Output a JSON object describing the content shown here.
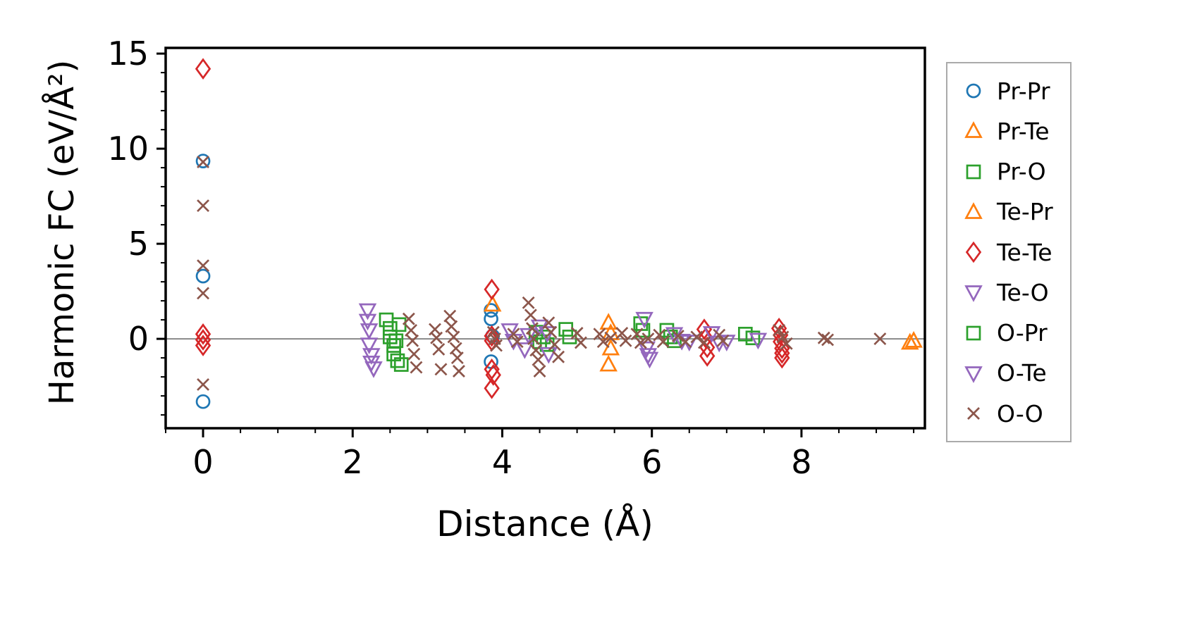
{
  "chart_data": {
    "type": "scatter",
    "title": "",
    "xlabel": "Distance (Å)",
    "ylabel": "Harmonic FC (eV/Å²)",
    "xlim": [
      -0.5,
      9.65
    ],
    "ylim": [
      -4.7,
      15.3
    ],
    "xticks": [
      "0",
      "2",
      "4",
      "6",
      "8"
    ],
    "xtick_values": [
      0,
      2,
      4,
      6,
      8
    ],
    "yticks": [
      "0",
      "5",
      "10",
      "15"
    ],
    "ytick_values": [
      0,
      5,
      10,
      15
    ],
    "grid": false,
    "zero_line": {
      "y": 0,
      "color": "#888888"
    },
    "legend_position": "right-outside",
    "frame_color": "#000000",
    "series": [
      {
        "name": "Pr-Pr",
        "marker": "circle",
        "color": "#1f77b4",
        "points": [
          [
            0,
            9.35
          ],
          [
            0,
            3.3
          ],
          [
            0,
            -3.3
          ],
          [
            3.85,
            1.5
          ],
          [
            3.85,
            1.05
          ],
          [
            3.87,
            0.15
          ],
          [
            3.85,
            -1.2
          ]
        ]
      },
      {
        "name": "Pr-Te",
        "marker": "triangle-up",
        "color": "#ff7f0e",
        "points": [
          [
            5.42,
            0.85
          ],
          [
            5.45,
            0.3
          ],
          [
            5.45,
            -0.5
          ],
          [
            5.42,
            -1.35
          ]
        ]
      },
      {
        "name": "Pr-O",
        "marker": "square",
        "color": "#2ca02c",
        "points": [
          [
            2.45,
            1.0
          ],
          [
            2.5,
            0.55
          ],
          [
            2.5,
            0.1
          ],
          [
            2.55,
            -0.35
          ],
          [
            2.55,
            -0.8
          ],
          [
            2.6,
            -1.15
          ],
          [
            2.65,
            -1.35
          ],
          [
            2.62,
            0.75
          ],
          [
            2.58,
            -0.1
          ]
        ]
      },
      {
        "name": "Te-Pr",
        "marker": "triangle-up",
        "color": "#ff7f0e",
        "points": [
          [
            3.87,
            1.8
          ],
          [
            9.45,
            -0.2
          ],
          [
            9.5,
            -0.1
          ]
        ]
      },
      {
        "name": "Te-Te",
        "marker": "diamond",
        "color": "#d62728",
        "points": [
          [
            0,
            14.2
          ],
          [
            0,
            0.25
          ],
          [
            0,
            -0.05
          ],
          [
            0,
            -0.35
          ],
          [
            3.86,
            2.6
          ],
          [
            3.86,
            0.15
          ],
          [
            3.86,
            -0.1
          ],
          [
            3.86,
            -1.6
          ],
          [
            3.88,
            -1.9
          ],
          [
            3.86,
            -2.6
          ],
          [
            6.7,
            0.5
          ],
          [
            6.72,
            0.05
          ],
          [
            6.74,
            -0.45
          ],
          [
            6.74,
            -0.9
          ],
          [
            7.7,
            0.55
          ],
          [
            7.72,
            0.2
          ],
          [
            7.72,
            -0.15
          ],
          [
            7.74,
            -0.5
          ],
          [
            7.74,
            -0.75
          ],
          [
            7.74,
            -1.0
          ]
        ]
      },
      {
        "name": "Te-O",
        "marker": "triangle-down",
        "color": "#9467bd",
        "points": [
          [
            2.2,
            1.5
          ],
          [
            2.2,
            0.95
          ],
          [
            2.22,
            0.45
          ],
          [
            2.22,
            -0.3
          ],
          [
            2.25,
            -0.85
          ],
          [
            2.25,
            -1.25
          ],
          [
            2.28,
            -1.55
          ]
        ]
      },
      {
        "name": "O-Pr",
        "marker": "square",
        "color": "#2ca02c",
        "points": [
          [
            4.45,
            0.35
          ],
          [
            4.5,
            -0.15
          ],
          [
            4.55,
            0.1
          ],
          [
            4.6,
            -0.3
          ],
          [
            4.85,
            0.5
          ],
          [
            4.9,
            0.1
          ],
          [
            5.85,
            0.8
          ],
          [
            5.88,
            0.45
          ],
          [
            6.2,
            0.45
          ],
          [
            6.25,
            0.1
          ],
          [
            6.3,
            -0.1
          ],
          [
            7.25,
            0.25
          ],
          [
            7.35,
            0.05
          ]
        ]
      },
      {
        "name": "O-Te",
        "marker": "triangle-down",
        "color": "#9467bd",
        "points": [
          [
            4.1,
            0.45
          ],
          [
            4.15,
            -0.1
          ],
          [
            4.3,
            -0.55
          ],
          [
            4.35,
            0.2
          ],
          [
            4.5,
            0.65
          ],
          [
            4.6,
            0.3
          ],
          [
            4.62,
            -0.8
          ],
          [
            5.9,
            1.05
          ],
          [
            5.93,
            -0.5
          ],
          [
            5.95,
            -0.85
          ],
          [
            5.97,
            -1.05
          ],
          [
            6.3,
            0.25
          ],
          [
            6.4,
            -0.1
          ],
          [
            6.5,
            -0.15
          ],
          [
            6.8,
            0.3
          ],
          [
            6.9,
            -0.2
          ],
          [
            7.0,
            -0.15
          ],
          [
            7.42,
            -0.05
          ]
        ]
      },
      {
        "name": "O-O",
        "marker": "x",
        "color": "#8c564b",
        "points": [
          [
            0,
            9.3
          ],
          [
            0,
            7.0
          ],
          [
            0,
            3.85
          ],
          [
            0,
            2.4
          ],
          [
            0,
            -2.4
          ],
          [
            2.75,
            1.05
          ],
          [
            2.78,
            0.45
          ],
          [
            2.8,
            -0.1
          ],
          [
            2.82,
            -0.8
          ],
          [
            2.85,
            -1.5
          ],
          [
            3.1,
            0.5
          ],
          [
            3.12,
            0.05
          ],
          [
            3.15,
            -0.55
          ],
          [
            3.18,
            -1.6
          ],
          [
            3.3,
            1.2
          ],
          [
            3.32,
            0.65
          ],
          [
            3.35,
            0.1
          ],
          [
            3.38,
            -0.5
          ],
          [
            3.4,
            -1.0
          ],
          [
            3.42,
            -1.7
          ],
          [
            3.88,
            0.35
          ],
          [
            3.9,
            0.0
          ],
          [
            3.92,
            -0.35
          ],
          [
            4.15,
            0.25
          ],
          [
            4.2,
            -0.15
          ],
          [
            4.35,
            1.9
          ],
          [
            4.38,
            1.25
          ],
          [
            4.4,
            0.55
          ],
          [
            4.42,
            0.0
          ],
          [
            4.45,
            -0.6
          ],
          [
            4.48,
            -1.1
          ],
          [
            4.5,
            -1.7
          ],
          [
            4.62,
            0.85
          ],
          [
            4.65,
            0.35
          ],
          [
            4.7,
            -0.3
          ],
          [
            4.75,
            -0.95
          ],
          [
            5.0,
            0.3
          ],
          [
            5.05,
            -0.2
          ],
          [
            5.3,
            0.25
          ],
          [
            5.35,
            -0.15
          ],
          [
            5.45,
            0.05
          ],
          [
            5.6,
            0.3
          ],
          [
            5.65,
            -0.1
          ],
          [
            5.8,
            0.25
          ],
          [
            5.85,
            -0.2
          ],
          [
            5.95,
            0.0
          ],
          [
            6.1,
            0.2
          ],
          [
            6.15,
            -0.15
          ],
          [
            6.35,
            0.15
          ],
          [
            6.45,
            -0.15
          ],
          [
            6.6,
            0.1
          ],
          [
            6.7,
            -0.2
          ],
          [
            6.9,
            0.2
          ],
          [
            6.95,
            -0.1
          ],
          [
            7.7,
            0.45
          ],
          [
            7.75,
            0.1
          ],
          [
            7.8,
            -0.25
          ],
          [
            8.3,
            0.05
          ],
          [
            8.35,
            -0.05
          ],
          [
            9.05,
            0.0
          ]
        ]
      }
    ]
  }
}
